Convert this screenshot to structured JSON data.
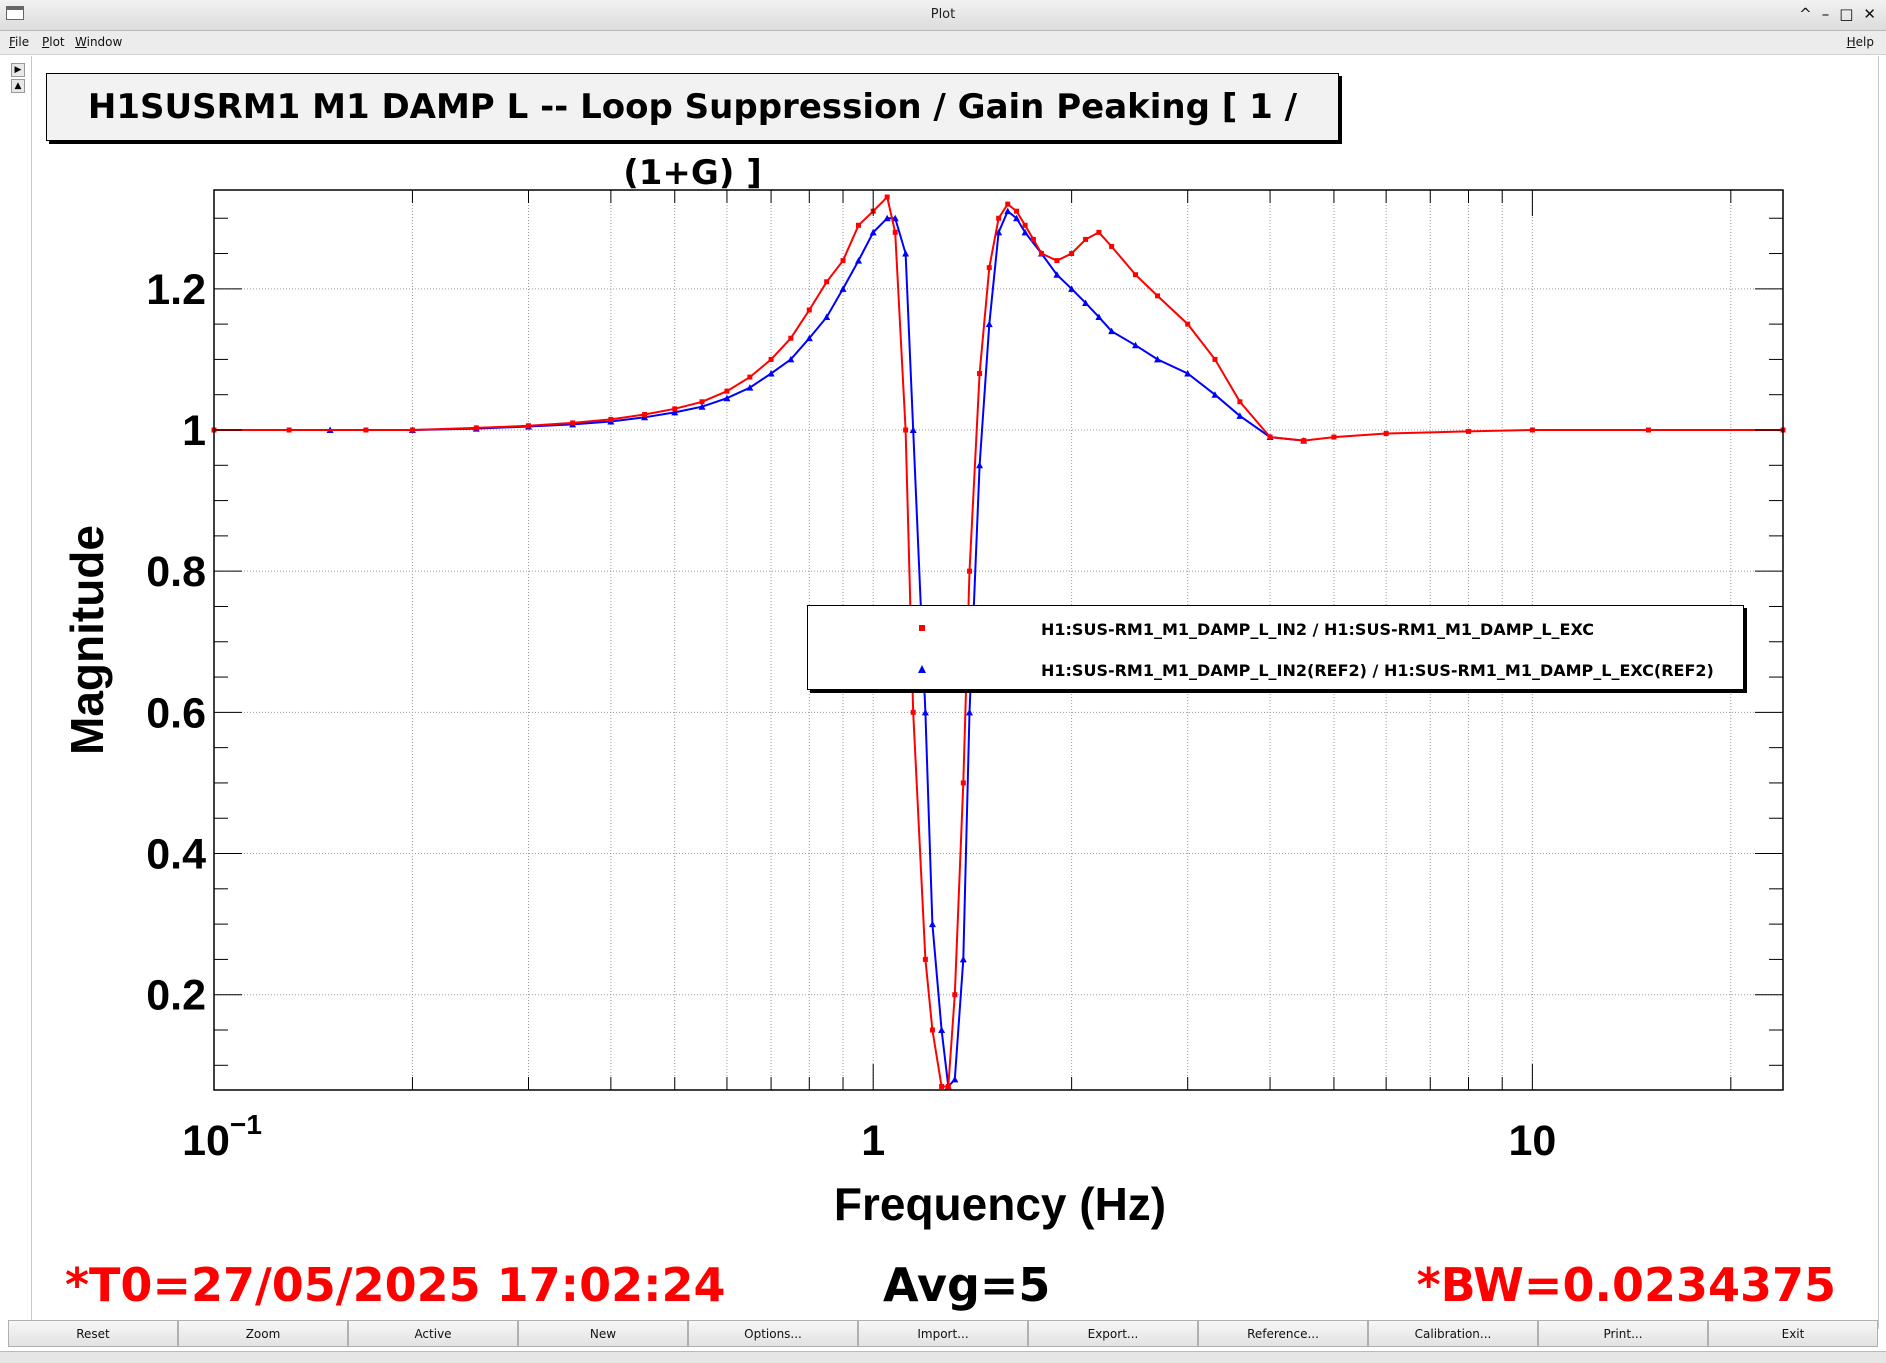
{
  "window": {
    "title": "Plot",
    "controls": [
      "^",
      "–",
      "□",
      "✕"
    ]
  },
  "menu": {
    "file": "File",
    "plot": "Plot",
    "window": "Window",
    "help": "Help"
  },
  "plot_title": "H1SUSRM1 M1 DAMP L -- Loop Suppression / Gain Peaking [ 1 / (1+G) ]",
  "legend": {
    "entries": [
      "H1:SUS-RM1_M1_DAMP_L_IN2 / H1:SUS-RM1_M1_DAMP_L_EXC",
      "H1:SUS-RM1_M1_DAMP_L_IN2(REF2) / H1:SUS-RM1_M1_DAMP_L_EXC(REF2)"
    ]
  },
  "status": {
    "t0": "*T0=27/05/2025 17:02:24",
    "avg": "Avg=5",
    "bw": "*BW=0.0234375"
  },
  "buttons": [
    "Reset",
    "Zoom",
    "Active",
    "New",
    "Options...",
    "Import...",
    "Export...",
    "Reference...",
    "Calibration...",
    "Print...",
    "Exit"
  ],
  "colors": {
    "series_current": "#ff0000",
    "series_reference": "#0000ff",
    "status_red": "#ff0000"
  },
  "chart_data": {
    "type": "line",
    "xlabel": "Frequency (Hz)",
    "ylabel": "Magnitude",
    "xscale": "log",
    "xlim": [
      0.1,
      24
    ],
    "ylim": [
      0.065,
      1.34
    ],
    "x_ticks": [
      {
        "value": 0.1,
        "label": "10",
        "exp": "−1"
      },
      {
        "value": 1,
        "label": "1"
      },
      {
        "value": 10,
        "label": "10"
      }
    ],
    "y_ticks": [
      0.2,
      0.4,
      0.6,
      0.8,
      1,
      1.2
    ],
    "y_tick_labels": [
      "0.2",
      "0.4",
      "0.6",
      "0.8",
      "1",
      "1.2"
    ],
    "grid": true,
    "legend_position": "center-right",
    "series": [
      {
        "name": "H1:SUS-RM1_M1_DAMP_L_IN2 / H1:SUS-RM1_M1_DAMP_L_EXC",
        "marker": "square",
        "x": [
          0.1,
          0.13,
          0.17,
          0.2,
          0.25,
          0.3,
          0.35,
          0.4,
          0.45,
          0.5,
          0.55,
          0.6,
          0.65,
          0.7,
          0.75,
          0.8,
          0.85,
          0.9,
          0.95,
          1.0,
          1.05,
          1.08,
          1.12,
          1.15,
          1.2,
          1.23,
          1.27,
          1.3,
          1.33,
          1.37,
          1.4,
          1.45,
          1.5,
          1.55,
          1.6,
          1.65,
          1.7,
          1.75,
          1.8,
          1.9,
          2.0,
          2.1,
          2.2,
          2.3,
          2.5,
          2.7,
          3.0,
          3.3,
          3.6,
          4.0,
          4.5,
          5.0,
          6.0,
          8.0,
          10.0,
          15.0,
          24.0
        ],
        "y": [
          1.0,
          1.0,
          1.0,
          1.0,
          1.003,
          1.006,
          1.01,
          1.015,
          1.022,
          1.03,
          1.04,
          1.055,
          1.075,
          1.1,
          1.13,
          1.17,
          1.21,
          1.24,
          1.29,
          1.31,
          1.33,
          1.28,
          1.0,
          0.6,
          0.25,
          0.15,
          0.07,
          0.07,
          0.2,
          0.5,
          0.8,
          1.08,
          1.23,
          1.3,
          1.32,
          1.31,
          1.29,
          1.27,
          1.25,
          1.24,
          1.25,
          1.27,
          1.28,
          1.26,
          1.22,
          1.19,
          1.15,
          1.1,
          1.04,
          0.99,
          0.985,
          0.99,
          0.995,
          0.998,
          1.0,
          1.0,
          1.0
        ]
      },
      {
        "name": "H1:SUS-RM1_M1_DAMP_L_IN2(REF2) / H1:SUS-RM1_M1_DAMP_L_EXC(REF2)",
        "marker": "triangle",
        "x": [
          0.15,
          0.2,
          0.25,
          0.3,
          0.35,
          0.4,
          0.45,
          0.5,
          0.55,
          0.6,
          0.65,
          0.7,
          0.75,
          0.8,
          0.85,
          0.9,
          0.95,
          1.0,
          1.05,
          1.08,
          1.12,
          1.15,
          1.2,
          1.23,
          1.27,
          1.3,
          1.33,
          1.37,
          1.4,
          1.45,
          1.5,
          1.55,
          1.6,
          1.65,
          1.7,
          1.8,
          1.9,
          2.0,
          2.1,
          2.2,
          2.3,
          2.5,
          2.7,
          3.0,
          3.3,
          3.6,
          4.0,
          4.5
        ],
        "y": [
          1.0,
          1.0,
          1.002,
          1.005,
          1.008,
          1.012,
          1.018,
          1.025,
          1.033,
          1.045,
          1.06,
          1.08,
          1.1,
          1.13,
          1.16,
          1.2,
          1.24,
          1.28,
          1.3,
          1.3,
          1.25,
          1.0,
          0.6,
          0.3,
          0.15,
          0.07,
          0.08,
          0.25,
          0.6,
          0.95,
          1.15,
          1.28,
          1.31,
          1.3,
          1.28,
          1.25,
          1.22,
          1.2,
          1.18,
          1.16,
          1.14,
          1.12,
          1.1,
          1.08,
          1.05,
          1.02,
          0.99,
          0.985
        ]
      }
    ]
  }
}
